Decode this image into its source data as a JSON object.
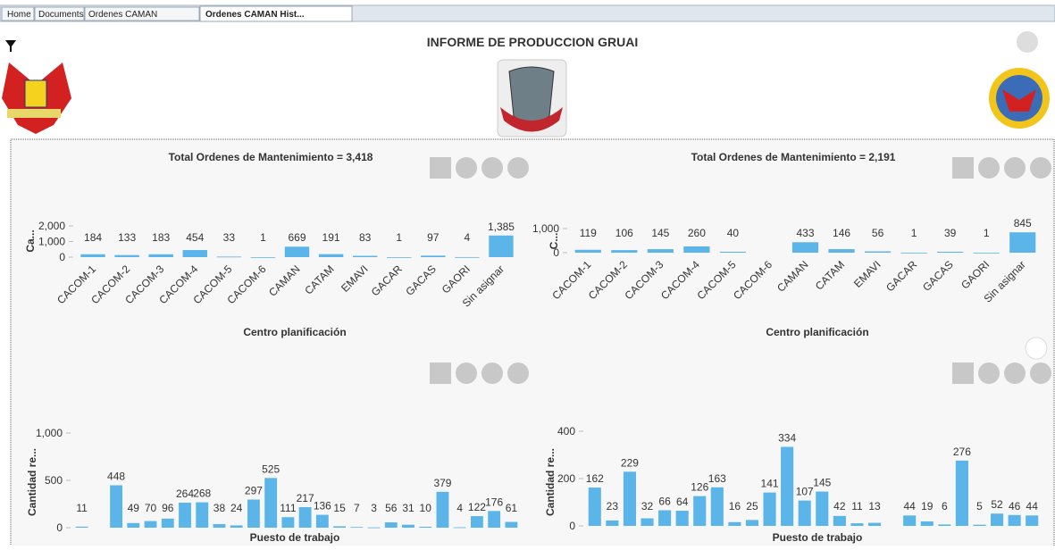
{
  "tabs": [
    "Home",
    "Documents",
    "Ordenes CAMAN",
    "Ordenes CAMAN Hist..."
  ],
  "header": {
    "title": "INFORME DE PRODUCCION GRUAI"
  },
  "chart_data": [
    {
      "type": "bar",
      "title": "Total Ordenes de Mantenimiento = 3,418",
      "y_label": "Ca...",
      "x_label": "Centro planificación",
      "color": "#5bb5e8",
      "categories": [
        "CACOM-1",
        "CACOM-2",
        "CACOM-3",
        "CACOM-4",
        "CACOM-5",
        "CACOM-6",
        "CAMAN",
        "CATAM",
        "EMAVI",
        "GACAR",
        "GACAS",
        "GAORI",
        "Sin asignar"
      ],
      "values": [
        184,
        133,
        183,
        454,
        33,
        1,
        669,
        191,
        83,
        1,
        97,
        4,
        1385
      ],
      "value_labels": [
        "184",
        "133",
        "183",
        "454",
        "33",
        "1",
        "669",
        "191",
        "83",
        "1",
        "97",
        "4",
        "1,385"
      ],
      "ylim": [
        0,
        2000
      ],
      "yticks": [
        0,
        {
          "value": 1000,
          "label": "1,000"
        },
        {
          "value": 2000,
          "label": "2,000"
        }
      ]
    },
    {
      "type": "bar",
      "title": "Total Ordenes de Mantenimiento = 2,191",
      "y_label": "C...",
      "x_label": "Centro planificación",
      "color": "#5bb5e8",
      "categories": [
        "CACOM-1",
        "CACOM-2",
        "CACOM-3",
        "CACOM-4",
        "CACOM-5",
        "CACOM-6",
        "CAMAN",
        "CATAM",
        "EMAVI",
        "GACAR",
        "GACAS",
        "GAORI",
        "Sin asignar"
      ],
      "values": [
        119,
        106,
        145,
        260,
        40,
        null,
        433,
        146,
        56,
        1,
        39,
        1,
        845
      ],
      "ylim": [
        0,
        1000
      ],
      "yticks": [
        0,
        {
          "value": 1000,
          "label": "1,000"
        }
      ]
    },
    {
      "type": "bar",
      "y_label": "Cantidad re...",
      "x_label": "Puesto de trabajo",
      "color": "#5bb5e8",
      "values": [
        11,
        null,
        448,
        49,
        70,
        96,
        264,
        268,
        38,
        24,
        297,
        525,
        111,
        217,
        136,
        15,
        7,
        3,
        56,
        31,
        10,
        379,
        4,
        122,
        176,
        61
      ],
      "ylim": [
        0,
        1000
      ],
      "yticks": [
        0,
        500,
        {
          "value": 1000,
          "label": "1,000"
        }
      ]
    },
    {
      "type": "bar",
      "y_label": "Cantidad re...",
      "x_label": "Puesto de trabajo",
      "color": "#5bb5e8",
      "values": [
        162,
        23,
        229,
        32,
        66,
        64,
        126,
        163,
        16,
        25,
        141,
        334,
        107,
        145,
        42,
        11,
        13,
        null,
        44,
        19,
        6,
        276,
        5,
        52,
        46,
        44
      ],
      "ylim": [
        0,
        400
      ],
      "yticks": [
        0,
        200,
        400
      ]
    }
  ]
}
